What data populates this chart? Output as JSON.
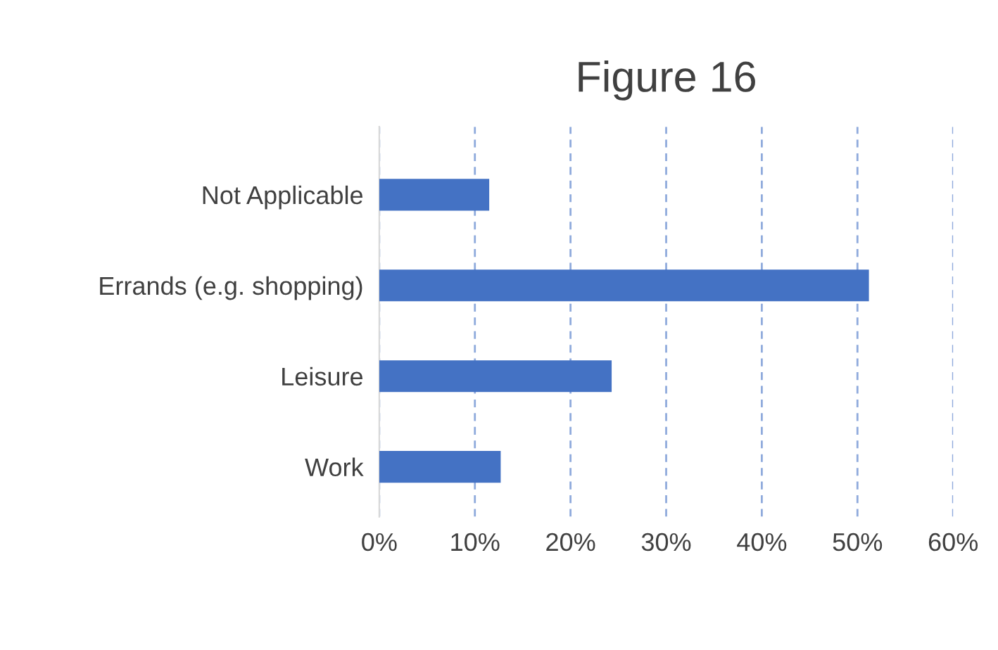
{
  "chart_data": {
    "type": "bar",
    "orientation": "horizontal",
    "title": "Figure 16",
    "categories": [
      "Not Applicable",
      "Errands (e.g. shopping)",
      "Leisure",
      "Work"
    ],
    "values": [
      11.5,
      51.2,
      24.3,
      12.7
    ],
    "color": "#4472c4",
    "xlim": [
      0,
      60
    ],
    "xticks": [
      {
        "value": 0,
        "label": "0%"
      },
      {
        "value": 10,
        "label": "10%"
      },
      {
        "value": 20,
        "label": "20%"
      },
      {
        "value": 30,
        "label": "30%"
      },
      {
        "value": 40,
        "label": "40%"
      },
      {
        "value": 50,
        "label": "50%"
      },
      {
        "value": 60,
        "label": "60%"
      }
    ],
    "grid": "x",
    "line_style": "dashed",
    "legend": false
  }
}
